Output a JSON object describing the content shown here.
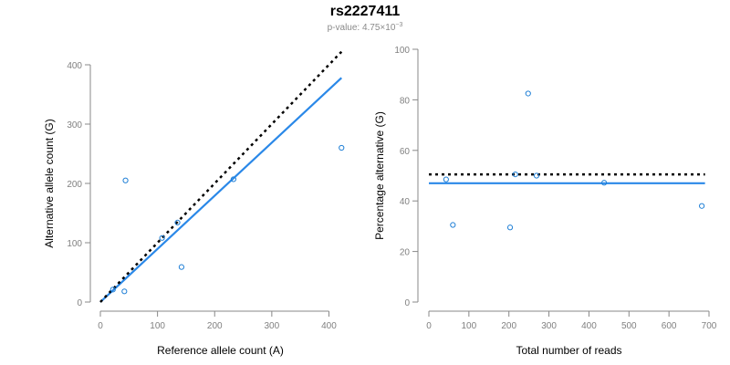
{
  "header": {
    "title": "rs2227411",
    "pvalue_prefix": "p-value: 4.75×10",
    "pvalue_exponent": "−3"
  },
  "colors": {
    "points": "#1f7fd6",
    "fit_line": "#2a88e8",
    "reference_line": "#000000",
    "axis": "#888888",
    "tick_label": "#808080"
  },
  "chart_data": [
    {
      "type": "scatter",
      "xlabel": "Reference allele count (A)",
      "ylabel": "Alternative allele count (G)",
      "xlim": [
        0,
        420
      ],
      "ylim": [
        0,
        400
      ],
      "xticks": [
        0,
        100,
        200,
        300,
        400
      ],
      "yticks": [
        0,
        100,
        200,
        300,
        400
      ],
      "points": [
        {
          "x": 22,
          "y": 21
        },
        {
          "x": 42,
          "y": 18
        },
        {
          "x": 44,
          "y": 205
        },
        {
          "x": 108,
          "y": 108
        },
        {
          "x": 135,
          "y": 134
        },
        {
          "x": 142,
          "y": 59
        },
        {
          "x": 233,
          "y": 207
        },
        {
          "x": 422,
          "y": 260
        }
      ],
      "lines": [
        {
          "name": "fit",
          "style": "solid",
          "x": [
            0,
            422
          ],
          "y": [
            0,
            378
          ]
        },
        {
          "name": "expected",
          "style": "dotted",
          "x": [
            0,
            422
          ],
          "y": [
            0,
            422
          ]
        }
      ]
    },
    {
      "type": "scatter",
      "xlabel": "Total number of reads",
      "ylabel": "Percentage alternative (G)",
      "xlim": [
        0,
        700
      ],
      "ylim": [
        0,
        100
      ],
      "xticks": [
        0,
        100,
        200,
        300,
        400,
        500,
        600,
        700
      ],
      "yticks": [
        0,
        20,
        40,
        60,
        80,
        100
      ],
      "points": [
        {
          "x": 43,
          "y": 48.5
        },
        {
          "x": 60,
          "y": 30.5
        },
        {
          "x": 203,
          "y": 29.5
        },
        {
          "x": 216,
          "y": 50.5
        },
        {
          "x": 248,
          "y": 82.5
        },
        {
          "x": 269,
          "y": 50
        },
        {
          "x": 438,
          "y": 47.2
        },
        {
          "x": 682,
          "y": 38
        }
      ],
      "lines": [
        {
          "name": "fit",
          "style": "solid",
          "x": [
            0,
            690
          ],
          "y": [
            47,
            47
          ]
        },
        {
          "name": "expected",
          "style": "dotted",
          "x": [
            0,
            690
          ],
          "y": [
            50.5,
            50.5
          ]
        }
      ]
    }
  ]
}
